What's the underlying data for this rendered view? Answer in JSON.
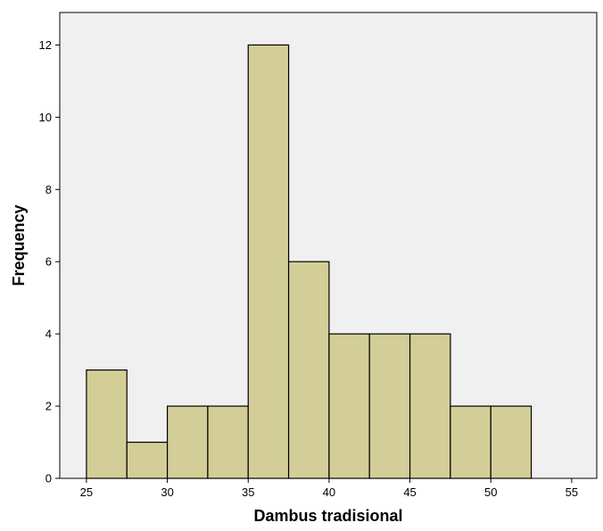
{
  "chart_data": {
    "type": "bar",
    "title": "",
    "xlabel": "Dambus tradisional",
    "ylabel": "Frequency",
    "bins": [
      {
        "start": 25.0,
        "end": 27.5,
        "value": 3
      },
      {
        "start": 27.5,
        "end": 30.0,
        "value": 1
      },
      {
        "start": 30.0,
        "end": 32.5,
        "value": 2
      },
      {
        "start": 32.5,
        "end": 35.0,
        "value": 2
      },
      {
        "start": 35.0,
        "end": 37.5,
        "value": 12
      },
      {
        "start": 37.5,
        "end": 40.0,
        "value": 6
      },
      {
        "start": 40.0,
        "end": 42.5,
        "value": 4
      },
      {
        "start": 42.5,
        "end": 45.0,
        "value": 4
      },
      {
        "start": 45.0,
        "end": 47.5,
        "value": 4
      },
      {
        "start": 47.5,
        "end": 50.0,
        "value": 2
      },
      {
        "start": 50.0,
        "end": 52.5,
        "value": 2
      }
    ],
    "xticks": [
      25,
      30,
      35,
      40,
      45,
      50,
      55
    ],
    "yticks": [
      0,
      2,
      4,
      6,
      8,
      10,
      12
    ],
    "xlim": [
      23.35,
      56.55
    ],
    "ylim": [
      0,
      12.9
    ],
    "grid": false,
    "colors": {
      "plot_background": "#f0f0f0",
      "bar_fill": "#d3ce98",
      "bar_stroke": "#000000"
    }
  }
}
